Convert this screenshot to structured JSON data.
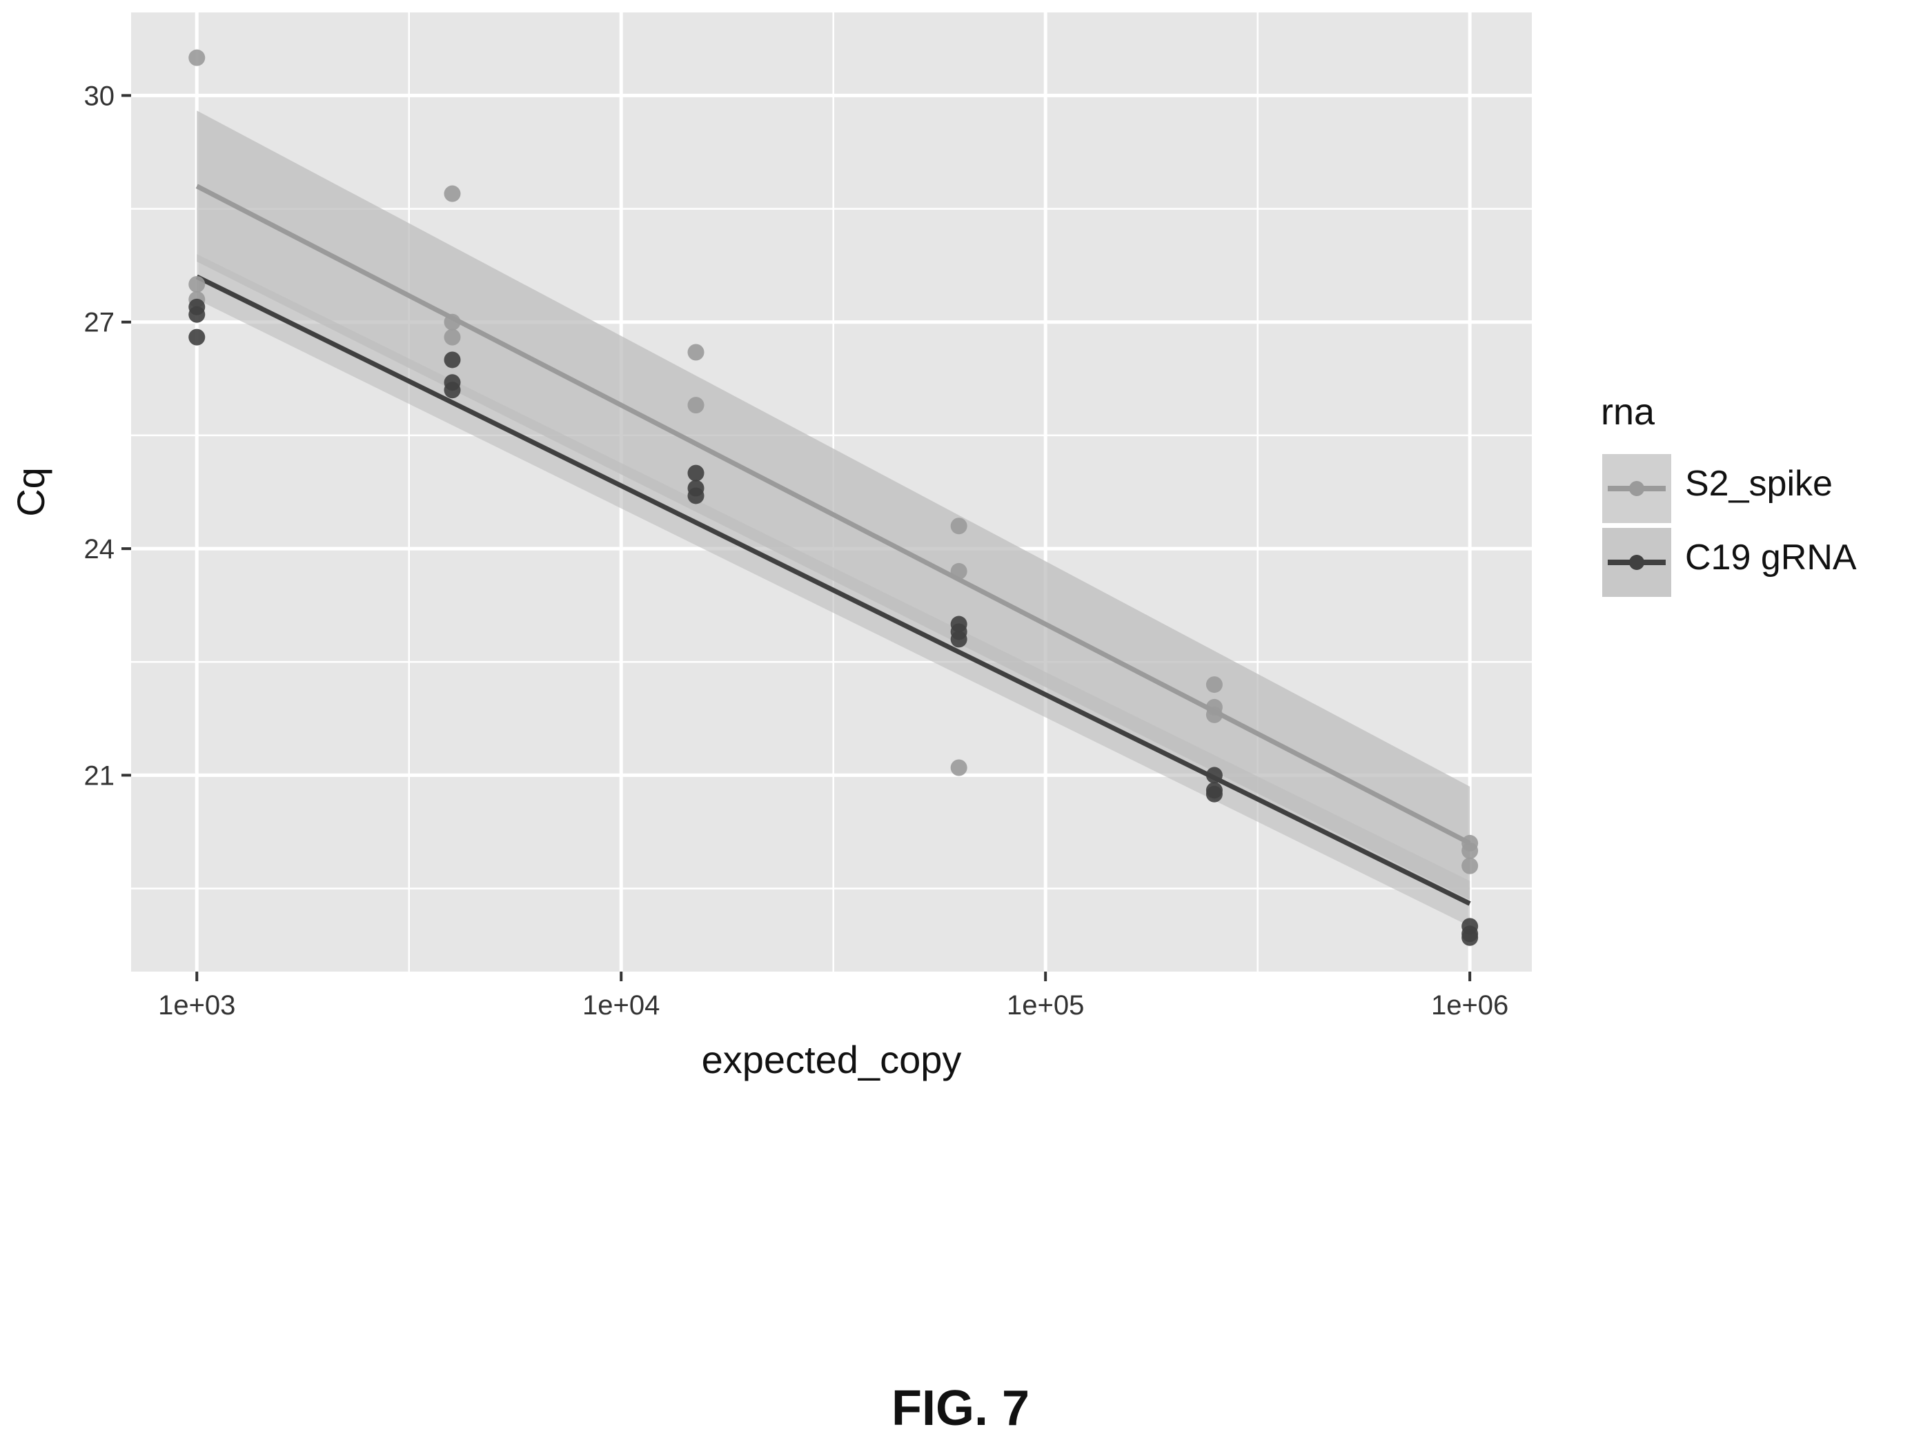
{
  "figure": {
    "caption": "FIG. 7"
  },
  "chart_data": {
    "type": "scatter",
    "title": "",
    "xlabel": "expected_copy",
    "ylabel": "Cq",
    "x_scale": "log10",
    "xlim": [
      700,
      1400000
    ],
    "ylim": [
      18.4,
      31.1
    ],
    "x_ticks": [
      1000,
      10000,
      100000,
      1000000
    ],
    "x_tick_labels": [
      "1e+03",
      "1e+04",
      "1e+05",
      "1e+06"
    ],
    "y_ticks": [
      21,
      24,
      27,
      30
    ],
    "y_tick_labels": [
      "21",
      "24",
      "27",
      "30"
    ],
    "grid": true,
    "legend": {
      "title": "rna",
      "position": "right"
    },
    "colors": {
      "panel": "#e6e6e6",
      "grid": "#ffffff",
      "S2_spike": "#9a9a9a",
      "C19 gRNA": "#404040",
      "band": "#bdbdbd"
    },
    "series": [
      {
        "name": "S2_spike",
        "x": [
          1000,
          1000,
          1000,
          4000,
          4000,
          4000,
          15000,
          15000,
          62500,
          62500,
          62500,
          250000,
          250000,
          250000,
          1000000,
          1000000,
          1000000
        ],
        "y": [
          30.5,
          27.5,
          27.3,
          28.7,
          27.0,
          26.8,
          26.6,
          25.9,
          24.3,
          23.7,
          21.1,
          22.2,
          21.9,
          21.8,
          20.1,
          20.0,
          19.8
        ],
        "fit": {
          "x": [
            1000,
            1000000
          ],
          "y": [
            28.8,
            20.1
          ]
        }
      },
      {
        "name": "C19 gRNA",
        "x": [
          1000,
          1000,
          1000,
          4000,
          4000,
          4000,
          15000,
          15000,
          15000,
          62500,
          62500,
          62500,
          250000,
          250000,
          250000,
          1000000,
          1000000,
          1000000
        ],
        "y": [
          27.2,
          27.1,
          26.8,
          26.5,
          26.2,
          26.1,
          25.0,
          24.8,
          24.7,
          23.0,
          22.9,
          22.8,
          21.0,
          20.8,
          20.75,
          19.0,
          18.9,
          18.85
        ],
        "fit": {
          "x": [
            1000,
            1000000
          ],
          "y": [
            27.6,
            19.3
          ]
        }
      }
    ]
  }
}
